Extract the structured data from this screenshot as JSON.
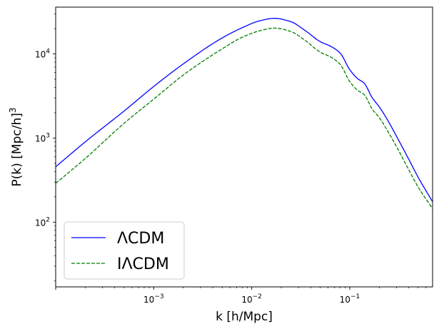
{
  "chart_data": {
    "type": "line",
    "xlabel": "k [h/Mpc]",
    "ylabel": "P(k) [Mpc/h]",
    "ylabel_superscript": "3",
    "xscale": "log",
    "yscale": "log",
    "xlim": [
      0.0001,
      0.7
    ],
    "ylim": [
      17,
      36000
    ],
    "grid": false,
    "legend_position": "lower-left",
    "x_ticks": [
      {
        "value": 0.001,
        "base": "10",
        "exp": "−3"
      },
      {
        "value": 0.01,
        "base": "10",
        "exp": "−2"
      },
      {
        "value": 0.1,
        "base": "10",
        "exp": "−1"
      }
    ],
    "y_ticks": [
      {
        "value": 100,
        "base": "10",
        "exp": "2"
      },
      {
        "value": 1000,
        "base": "10",
        "exp": "3"
      },
      {
        "value": 10000,
        "base": "10",
        "exp": "4"
      }
    ],
    "series": [
      {
        "name": "ΛCDM",
        "color": "#0000ff",
        "dash": "solid",
        "x": [
          0.0001,
          0.0002,
          0.0005,
          0.001,
          0.002,
          0.005,
          0.008,
          0.012,
          0.017,
          0.025,
          0.035,
          0.05,
          0.065,
          0.08,
          0.1,
          0.12,
          0.14,
          0.17,
          0.2,
          0.25,
          0.3,
          0.4,
          0.5,
          0.7
        ],
        "y": [
          455,
          900,
          2100,
          4100,
          7600,
          15500,
          20500,
          24700,
          26500,
          24200,
          19000,
          14000,
          12200,
          10200,
          6500,
          5100,
          4500,
          3000,
          2350,
          1550,
          1050,
          560,
          340,
          175
        ]
      },
      {
        "name": "IΛCDM",
        "color": "#008000",
        "dash": "dashed",
        "x": [
          0.0001,
          0.0002,
          0.0005,
          0.001,
          0.002,
          0.005,
          0.008,
          0.012,
          0.017,
          0.025,
          0.035,
          0.05,
          0.065,
          0.08,
          0.1,
          0.12,
          0.14,
          0.17,
          0.2,
          0.25,
          0.3,
          0.4,
          0.5,
          0.7
        ],
        "y": [
          290,
          570,
          1500,
          2900,
          5600,
          11500,
          15800,
          18800,
          20300,
          18500,
          14500,
          10500,
          9100,
          7500,
          4700,
          3700,
          3300,
          2200,
          1750,
          1150,
          790,
          420,
          260,
          145
        ]
      }
    ]
  }
}
